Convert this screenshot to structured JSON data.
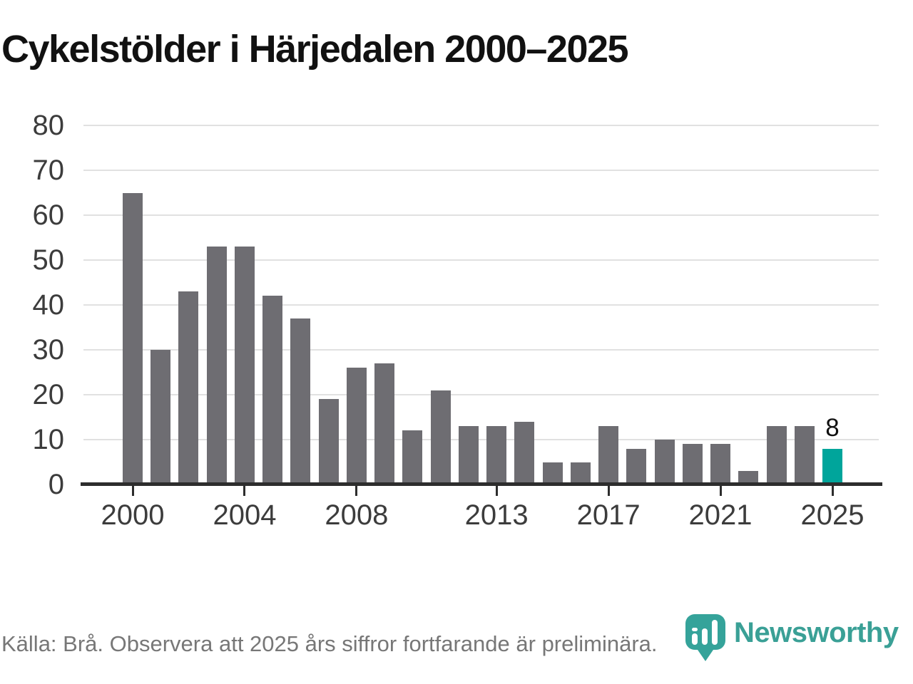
{
  "title": "Cykelstölder i Härjedalen 2000–2025",
  "footer": {
    "source_note": "Källa: Brå. Observera att 2025 års siffror fortfarande är preliminära."
  },
  "branding": {
    "logo_text": "Newsworthy",
    "logo_icon": "bar-chart-pin-icon",
    "logo_color": "#3aa096"
  },
  "colors": {
    "bar": "#6e6d72",
    "accent": "#00a59b",
    "grid": "#e1e1e1",
    "axis": "#2d2d2d",
    "tick_label": "#3c3c3c",
    "title_text": "#111111",
    "footer_text": "#777777"
  },
  "chart_data": {
    "type": "bar",
    "title": "Cykelstölder i Härjedalen 2000–2025",
    "xlabel": "",
    "ylabel": "",
    "categories": [
      2000,
      2001,
      2002,
      2003,
      2004,
      2005,
      2006,
      2007,
      2008,
      2009,
      2010,
      2011,
      2012,
      2013,
      2014,
      2015,
      2016,
      2017,
      2018,
      2019,
      2020,
      2021,
      2022,
      2023,
      2024,
      2025
    ],
    "values": [
      65,
      30,
      43,
      53,
      53,
      42,
      37,
      19,
      26,
      27,
      12,
      21,
      13,
      13,
      14,
      5,
      5,
      13,
      8,
      10,
      9,
      9,
      3,
      13,
      13,
      8
    ],
    "highlight_category": 2025,
    "annotations": [
      {
        "category": 2025,
        "label": "8"
      }
    ],
    "xticks": [
      2000,
      2004,
      2008,
      2013,
      2017,
      2021,
      2025
    ],
    "yticks": [
      0,
      10,
      20,
      30,
      40,
      50,
      60,
      70,
      80
    ],
    "ylim": [
      0,
      80
    ],
    "grid": "horizontal",
    "legend": "none"
  }
}
